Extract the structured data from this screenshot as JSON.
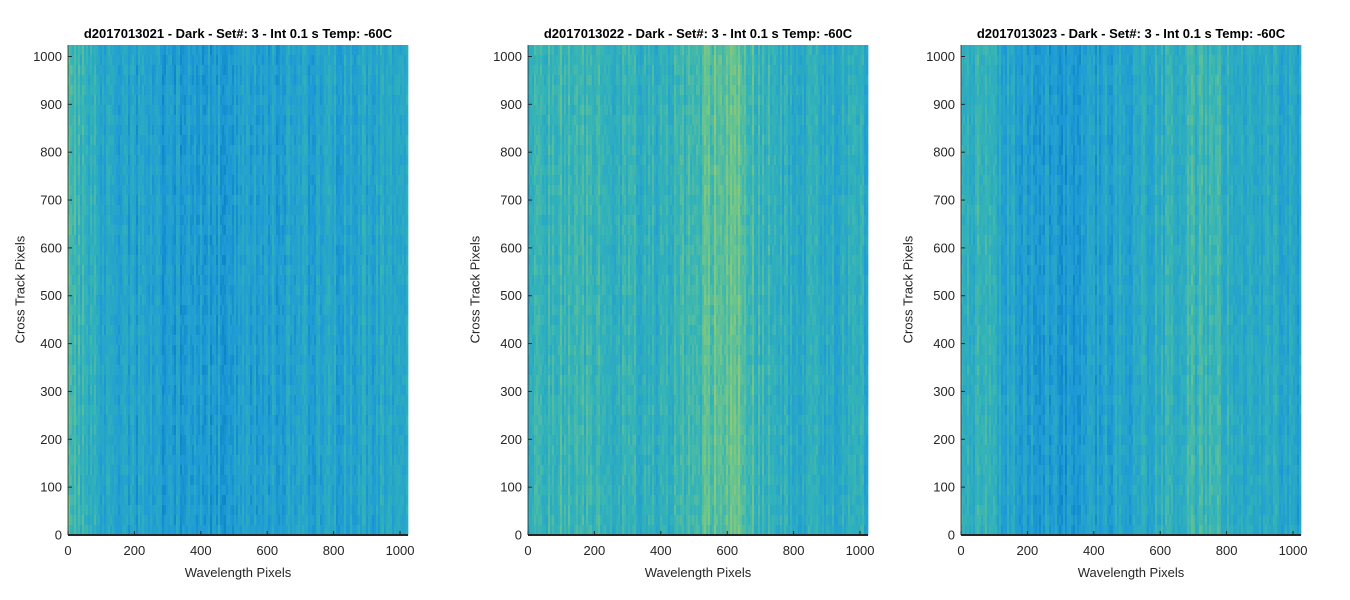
{
  "chart_data": [
    {
      "type": "heatmap",
      "title": "d2017013021 - Dark - Set#: 3 - Int 0.1 s Temp: -60C",
      "xlabel": "Wavelength Pixels",
      "ylabel": "Cross Track Pixels",
      "xlim": [
        0,
        1024
      ],
      "ylim": [
        0,
        1024
      ],
      "xticks": [
        0,
        200,
        400,
        600,
        800,
        1000
      ],
      "yticks": [
        0,
        100,
        200,
        300,
        400,
        500,
        600,
        700,
        800,
        900,
        1000
      ],
      "colormap": [
        "#0072bd",
        "#1e9bd6",
        "#33b3b8",
        "#76c785",
        "#c8c84a"
      ],
      "column_profile": {
        "x": [
          0,
          30,
          100,
          200,
          300,
          400,
          500,
          600,
          700,
          800,
          900,
          980,
          1024
        ],
        "level": [
          0.62,
          0.5,
          0.4,
          0.32,
          0.26,
          0.28,
          0.3,
          0.29,
          0.32,
          0.34,
          0.36,
          0.38,
          0.45
        ]
      }
    },
    {
      "type": "heatmap",
      "title": "d2017013022 - Dark - Set#: 3 - Int 0.1 s Temp: -60C",
      "xlabel": "Wavelength Pixels",
      "ylabel": "Cross Track Pixels",
      "xlim": [
        0,
        1024
      ],
      "ylim": [
        0,
        1024
      ],
      "xticks": [
        0,
        200,
        400,
        600,
        800,
        1000
      ],
      "yticks": [
        0,
        100,
        200,
        300,
        400,
        500,
        600,
        700,
        800,
        900,
        1000
      ],
      "colormap": [
        "#0072bd",
        "#1e9bd6",
        "#33b3b8",
        "#76c785",
        "#c8c84a"
      ],
      "column_profile": {
        "x": [
          0,
          100,
          200,
          300,
          400,
          500,
          550,
          600,
          650,
          700,
          800,
          900,
          1024
        ],
        "level": [
          0.5,
          0.52,
          0.5,
          0.45,
          0.46,
          0.52,
          0.66,
          0.72,
          0.64,
          0.5,
          0.42,
          0.4,
          0.42
        ]
      }
    },
    {
      "type": "heatmap",
      "title": "d2017013023 - Dark - Set#: 3 - Int 0.1 s Temp: -60C",
      "xlabel": "Wavelength Pixels",
      "ylabel": "Cross Track Pixels",
      "xlim": [
        0,
        1024
      ],
      "ylim": [
        0,
        1024
      ],
      "xticks": [
        0,
        200,
        400,
        600,
        800,
        1000
      ],
      "yticks": [
        0,
        100,
        200,
        300,
        400,
        500,
        600,
        700,
        800,
        900,
        1000
      ],
      "colormap": [
        "#0072bd",
        "#1e9bd6",
        "#33b3b8",
        "#76c785",
        "#c8c84a"
      ],
      "column_profile": {
        "x": [
          0,
          100,
          200,
          300,
          400,
          500,
          600,
          700,
          800,
          900,
          1024
        ],
        "level": [
          0.5,
          0.42,
          0.3,
          0.26,
          0.3,
          0.36,
          0.44,
          0.52,
          0.48,
          0.4,
          0.36
        ]
      }
    }
  ]
}
